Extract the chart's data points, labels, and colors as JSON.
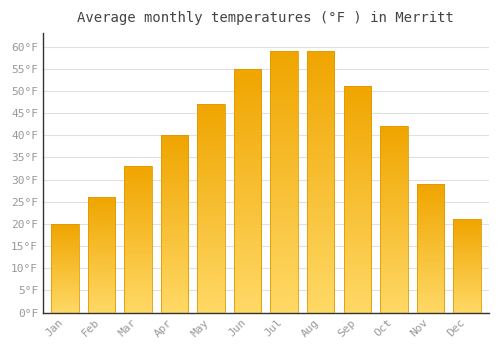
{
  "title": "Average monthly temperatures (°F ) in Merritt",
  "months": [
    "Jan",
    "Feb",
    "Mar",
    "Apr",
    "May",
    "Jun",
    "Jul",
    "Aug",
    "Sep",
    "Oct",
    "Nov",
    "Dec"
  ],
  "values": [
    20,
    26,
    33,
    40,
    47,
    55,
    59,
    59,
    51,
    42,
    29,
    21
  ],
  "bar_color_top": "#F0A500",
  "bar_color_bottom": "#FFD966",
  "bar_edge_color": "#E09A00",
  "ylim": [
    0,
    63
  ],
  "yticks": [
    0,
    5,
    10,
    15,
    20,
    25,
    30,
    35,
    40,
    45,
    50,
    55,
    60
  ],
  "background_color": "#FFFFFF",
  "plot_bg_color": "#FFFFFF",
  "grid_color": "#E0E0E0",
  "title_fontsize": 10,
  "tick_fontsize": 8,
  "tick_color": "#999999",
  "title_color": "#444444",
  "font_family": "monospace",
  "bar_width": 0.75,
  "left_spine_color": "#333333",
  "bottom_spine_color": "#333333"
}
